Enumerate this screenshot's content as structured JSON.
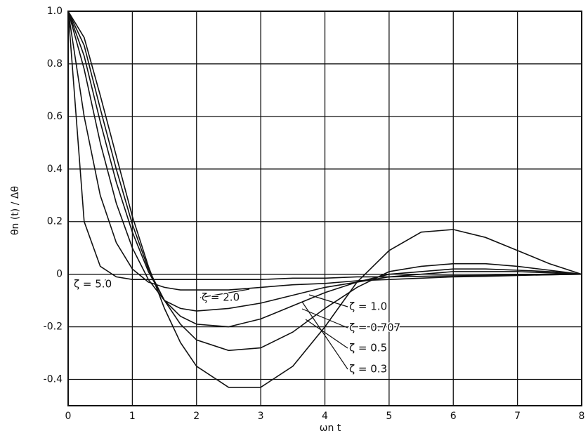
{
  "chart_data": {
    "type": "line",
    "x_label": "ωn t",
    "y_label": "θn (t) / Δθ",
    "x": [
      0,
      0.25,
      0.5,
      0.75,
      1,
      1.25,
      1.5,
      1.75,
      2,
      2.5,
      3,
      3.5,
      4,
      4.5,
      5,
      5.5,
      6,
      6.5,
      7,
      7.5,
      8
    ],
    "series": [
      {
        "name": "ζ = 5.0",
        "color": "#111111",
        "values": [
          1,
          0.2,
          0.03,
          -0.01,
          -0.02,
          -0.02,
          -0.02,
          -0.02,
          -0.02,
          -0.02,
          -0.02,
          -0.015,
          -0.015,
          -0.01,
          -0.01,
          -0.008,
          -0.006,
          -0.005,
          -0.003,
          -0.002,
          0
        ]
      },
      {
        "name": "ζ = 2.0",
        "color": "#111111",
        "values": [
          1,
          0.6,
          0.3,
          0.12,
          0.02,
          -0.03,
          -0.05,
          -0.06,
          -0.06,
          -0.06,
          -0.05,
          -0.04,
          -0.035,
          -0.025,
          -0.02,
          -0.015,
          -0.01,
          -0.008,
          -0.005,
          -0.002,
          0
        ]
      },
      {
        "name": "ζ = 1.0",
        "color": "#111111",
        "values": [
          1,
          0.78,
          0.5,
          0.27,
          0.1,
          -0.02,
          -0.1,
          -0.13,
          -0.14,
          -0.13,
          -0.11,
          -0.08,
          -0.05,
          -0.03,
          -0.01,
          0,
          0.01,
          0.01,
          0.01,
          0.005,
          0
        ]
      },
      {
        "name": "ζ = 0.707",
        "color": "#111111",
        "values": [
          1,
          0.83,
          0.58,
          0.35,
          0.16,
          0.01,
          -0.1,
          -0.16,
          -0.19,
          -0.2,
          -0.17,
          -0.12,
          -0.07,
          -0.03,
          0,
          0.01,
          0.02,
          0.02,
          0.015,
          0.01,
          0
        ]
      },
      {
        "name": "ζ = 0.5",
        "color": "#111111",
        "values": [
          1,
          0.87,
          0.63,
          0.4,
          0.19,
          0.02,
          -0.1,
          -0.19,
          -0.25,
          -0.29,
          -0.28,
          -0.22,
          -0.13,
          -0.05,
          0.01,
          0.03,
          0.04,
          0.04,
          0.03,
          0.015,
          0
        ]
      },
      {
        "name": "ζ = 0.3",
        "color": "#111111",
        "values": [
          1,
          0.9,
          0.68,
          0.45,
          0.22,
          0.03,
          -0.13,
          -0.26,
          -0.35,
          -0.43,
          -0.43,
          -0.35,
          -0.2,
          -0.03,
          0.09,
          0.16,
          0.17,
          0.14,
          0.09,
          0.04,
          0
        ]
      }
    ],
    "xlim": [
      0,
      8
    ],
    "xticks": [
      0,
      1,
      2,
      3,
      4,
      5,
      6,
      7,
      8
    ],
    "ylim": [
      -0.5,
      1
    ],
    "yticks": [
      -0.4,
      -0.2,
      0,
      0.2,
      0.4,
      0.6,
      0.8,
      {
        "value": 1,
        "label": "1.0"
      }
    ],
    "grid": true
  }
}
